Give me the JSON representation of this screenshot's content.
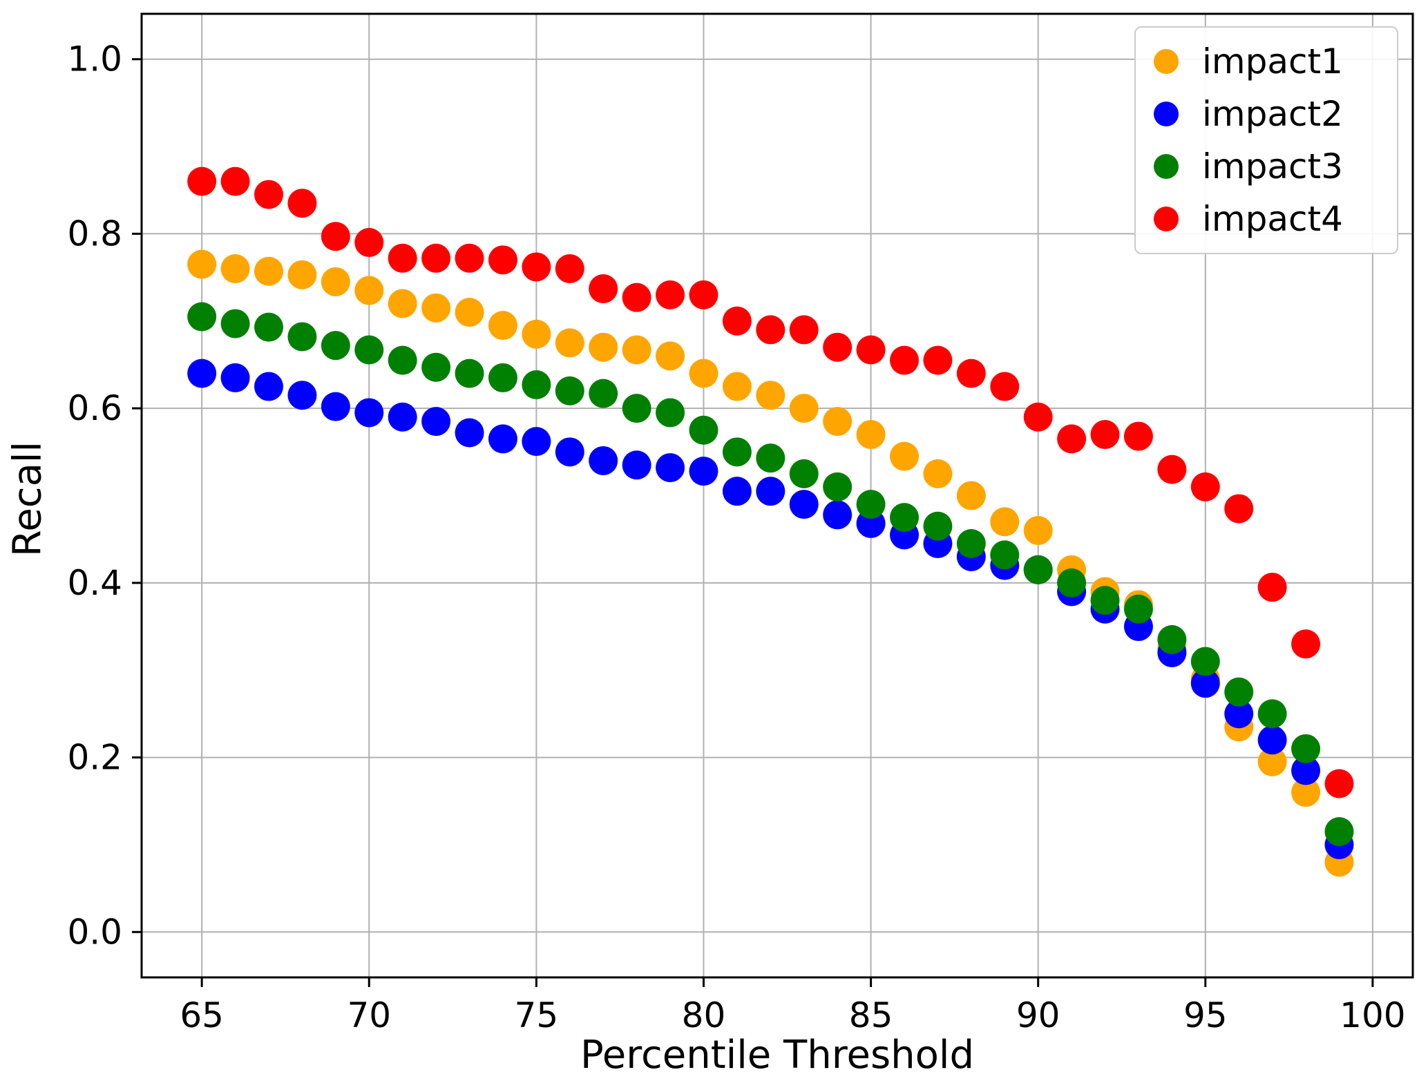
{
  "chart_data": {
    "type": "scatter",
    "title": "",
    "xlabel": "Percentile Threshold",
    "ylabel": "Recall",
    "grid": true,
    "grid_color": "#b0b0b0",
    "background": "#ffffff",
    "legend_position": "upper right",
    "xlim": [
      63.2,
      101.2
    ],
    "ylim": [
      -0.052,
      1.052
    ],
    "x_ticks": [
      65,
      70,
      75,
      80,
      85,
      90,
      95,
      100
    ],
    "y_ticks": [
      0.0,
      0.2,
      0.4,
      0.6,
      0.8,
      1.0
    ],
    "x": [
      65,
      66,
      67,
      68,
      69,
      70,
      71,
      72,
      73,
      74,
      75,
      76,
      77,
      78,
      79,
      80,
      81,
      82,
      83,
      84,
      85,
      86,
      87,
      88,
      89,
      90,
      91,
      92,
      93,
      94,
      95,
      96,
      97,
      98,
      99
    ],
    "series": [
      {
        "name": "impact1",
        "color": "#FFA500",
        "values": [
          0.765,
          0.76,
          0.757,
          0.753,
          0.745,
          0.735,
          0.72,
          0.715,
          0.71,
          0.695,
          0.685,
          0.675,
          0.67,
          0.667,
          0.66,
          0.64,
          0.625,
          0.615,
          0.6,
          0.585,
          0.57,
          0.545,
          0.525,
          0.5,
          0.47,
          0.46,
          0.415,
          0.39,
          0.375,
          0.325,
          0.29,
          0.235,
          0.195,
          0.16,
          0.08
        ]
      },
      {
        "name": "impact2",
        "color": "#0000FF",
        "values": [
          0.64,
          0.635,
          0.625,
          0.615,
          0.602,
          0.595,
          0.59,
          0.585,
          0.572,
          0.565,
          0.562,
          0.55,
          0.54,
          0.535,
          0.532,
          0.528,
          0.505,
          0.505,
          0.49,
          0.478,
          0.468,
          0.455,
          0.445,
          0.43,
          0.42,
          0.415,
          0.39,
          0.37,
          0.35,
          0.32,
          0.285,
          0.25,
          0.22,
          0.185,
          0.1
        ]
      },
      {
        "name": "impact3",
        "color": "#008000",
        "values": [
          0.705,
          0.697,
          0.693,
          0.682,
          0.672,
          0.667,
          0.655,
          0.647,
          0.64,
          0.635,
          0.627,
          0.62,
          0.617,
          0.6,
          0.595,
          0.575,
          0.55,
          0.543,
          0.525,
          0.51,
          0.49,
          0.475,
          0.465,
          0.445,
          0.432,
          0.415,
          0.4,
          0.38,
          0.37,
          0.335,
          0.31,
          0.275,
          0.25,
          0.21,
          0.115
        ]
      },
      {
        "name": "impact4",
        "color": "#FF0000",
        "values": [
          0.86,
          0.86,
          0.845,
          0.835,
          0.797,
          0.79,
          0.772,
          0.772,
          0.772,
          0.77,
          0.762,
          0.76,
          0.737,
          0.727,
          0.73,
          0.73,
          0.7,
          0.69,
          0.69,
          0.67,
          0.667,
          0.655,
          0.655,
          0.64,
          0.625,
          0.59,
          0.565,
          0.57,
          0.568,
          0.53,
          0.51,
          0.485,
          0.395,
          0.33,
          0.17
        ]
      }
    ],
    "marker_radius": 21,
    "tick_font_size": 50,
    "axis_color": "#000000"
  }
}
